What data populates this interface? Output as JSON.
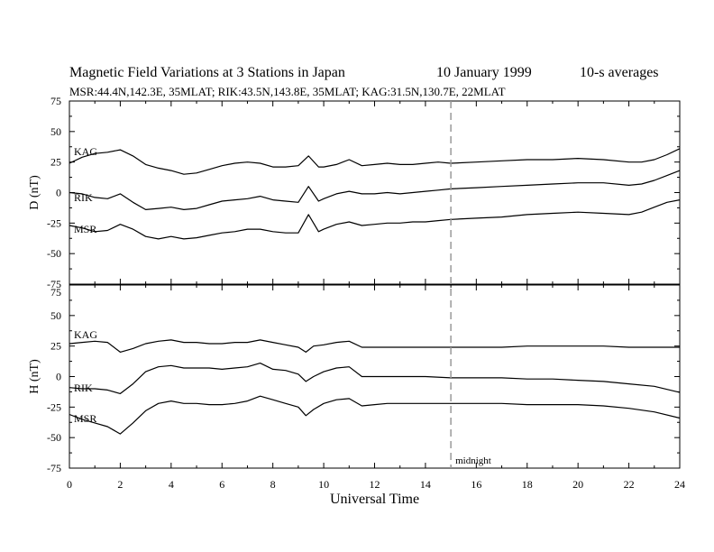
{
  "header": {
    "title": "Magnetic Field Variations at 3 Stations in Japan",
    "date": "10 January 1999",
    "averaging": "10-s averages",
    "stations": "MSR:44.4N,142.3E, 35MLAT;  RIK:43.5N,143.8E, 35MLAT;  KAG:31.5N,130.7E, 22MLAT"
  },
  "colors": {
    "trace": "#000000",
    "marker": "#999999"
  },
  "chart_data": {
    "type": "line",
    "xlabel": "Universal Time",
    "xlim": [
      0,
      24
    ],
    "xticks": [
      "0",
      "2",
      "4",
      "6",
      "8",
      "10",
      "12",
      "14",
      "16",
      "18",
      "20",
      "22",
      "24"
    ],
    "marker": {
      "x": 15,
      "label": "midnight"
    },
    "panels": [
      {
        "ylabel": "D (nT)",
        "ylim": [
          -75,
          75
        ],
        "yticks": [
          "75",
          "50",
          "25",
          "0",
          "-25",
          "-50",
          "-75"
        ],
        "series": [
          {
            "name": "KAG",
            "x": [
              0,
              0.5,
              1,
              1.5,
              2,
              2.5,
              3,
              3.5,
              4,
              4.5,
              5,
              5.5,
              6,
              6.5,
              7,
              7.5,
              8,
              8.5,
              9,
              9.4,
              9.8,
              10,
              10.5,
              11,
              11.5,
              12,
              12.5,
              13,
              13.5,
              14,
              14.5,
              15,
              16,
              17,
              18,
              19,
              20,
              21,
              22,
              22.5,
              23,
              23.5,
              24
            ],
            "y": [
              24,
              29,
              32,
              33,
              35,
              30,
              23,
              20,
              18,
              15,
              16,
              19,
              22,
              24,
              25,
              24,
              21,
              21,
              22,
              30,
              21,
              21,
              23,
              27,
              22,
              23,
              24,
              23,
              23,
              24,
              25,
              24,
              25,
              26,
              27,
              27,
              28,
              27,
              25,
              25,
              27,
              31,
              36
            ]
          },
          {
            "name": "RIK",
            "x": [
              0,
              0.5,
              1,
              1.5,
              2,
              2.5,
              3,
              3.5,
              4,
              4.5,
              5,
              5.5,
              6,
              6.5,
              7,
              7.5,
              8,
              8.5,
              9,
              9.4,
              9.8,
              10,
              10.5,
              11,
              11.5,
              12,
              12.5,
              13,
              13.5,
              14,
              14.5,
              15,
              16,
              17,
              18,
              19,
              20,
              21,
              22,
              22.5,
              23,
              23.5,
              24
            ],
            "y": [
              0,
              -1,
              -4,
              -5,
              -1,
              -8,
              -14,
              -13,
              -12,
              -14,
              -13,
              -10,
              -7,
              -6,
              -5,
              -3,
              -6,
              -7,
              -8,
              5,
              -7,
              -5,
              -1,
              1,
              -1,
              -1,
              0,
              -1,
              0,
              1,
              2,
              3,
              4,
              5,
              6,
              7,
              8,
              8,
              6,
              7,
              10,
              14,
              18
            ]
          },
          {
            "name": "MSR",
            "x": [
              0,
              0.5,
              1,
              1.5,
              2,
              2.5,
              3,
              3.5,
              4,
              4.5,
              5,
              5.5,
              6,
              6.5,
              7,
              7.5,
              8,
              8.5,
              9,
              9.4,
              9.8,
              10,
              10.5,
              11,
              11.5,
              12,
              12.5,
              13,
              13.5,
              14,
              14.5,
              15,
              16,
              17,
              18,
              19,
              20,
              21,
              22,
              22.5,
              23,
              23.5,
              24
            ],
            "y": [
              -27,
              -29,
              -32,
              -31,
              -26,
              -30,
              -36,
              -38,
              -36,
              -38,
              -37,
              -35,
              -33,
              -32,
              -30,
              -30,
              -32,
              -33,
              -33,
              -18,
              -32,
              -30,
              -26,
              -24,
              -27,
              -26,
              -25,
              -25,
              -24,
              -24,
              -23,
              -22,
              -21,
              -20,
              -18,
              -17,
              -16,
              -17,
              -18,
              -16,
              -12,
              -8,
              -6
            ]
          }
        ]
      },
      {
        "ylabel": "H (nT)",
        "ylim": [
          -75,
          75
        ],
        "yticks": [
          "75",
          "50",
          "25",
          "0",
          "-25",
          "-50",
          "-75"
        ],
        "series": [
          {
            "name": "KAG",
            "x": [
              0,
              0.5,
              1,
              1.5,
              2,
              2.5,
              3,
              3.5,
              4,
              4.5,
              5,
              5.5,
              6,
              6.5,
              7,
              7.5,
              8,
              8.5,
              9,
              9.3,
              9.6,
              10,
              10.5,
              11,
              11.5,
              12,
              12.5,
              13,
              14,
              15,
              16,
              17,
              18,
              19,
              20,
              21,
              22,
              23,
              24
            ],
            "y": [
              27,
              28,
              29,
              28,
              20,
              23,
              27,
              29,
              30,
              28,
              28,
              27,
              27,
              28,
              28,
              30,
              28,
              26,
              24,
              20,
              25,
              26,
              28,
              29,
              24,
              24,
              24,
              24,
              24,
              24,
              24,
              24,
              25,
              25,
              25,
              25,
              24,
              24,
              24
            ]
          },
          {
            "name": "RIK",
            "x": [
              0,
              0.5,
              1,
              1.5,
              2,
              2.5,
              3,
              3.5,
              4,
              4.5,
              5,
              5.5,
              6,
              6.5,
              7,
              7.5,
              8,
              8.5,
              9,
              9.3,
              9.6,
              10,
              10.5,
              11,
              11.5,
              12,
              12.5,
              13,
              14,
              15,
              16,
              17,
              18,
              19,
              20,
              21,
              22,
              23,
              24
            ],
            "y": [
              -9,
              -10,
              -10,
              -11,
              -14,
              -6,
              4,
              8,
              9,
              7,
              7,
              7,
              6,
              7,
              8,
              11,
              6,
              5,
              2,
              -4,
              0,
              4,
              7,
              8,
              0,
              0,
              0,
              0,
              0,
              -1,
              -1,
              -1,
              -2,
              -2,
              -3,
              -4,
              -6,
              -8,
              -13
            ]
          },
          {
            "name": "MSR",
            "x": [
              0,
              0.5,
              1,
              1.5,
              2,
              2.5,
              3,
              3.5,
              4,
              4.5,
              5,
              5.5,
              6,
              6.5,
              7,
              7.5,
              8,
              8.5,
              9,
              9.3,
              9.6,
              10,
              10.5,
              11,
              11.5,
              12,
              12.5,
              13,
              14,
              15,
              16,
              17,
              18,
              19,
              20,
              21,
              22,
              23,
              24
            ],
            "y": [
              -31,
              -35,
              -38,
              -41,
              -47,
              -38,
              -28,
              -22,
              -20,
              -22,
              -22,
              -23,
              -23,
              -22,
              -20,
              -16,
              -19,
              -22,
              -25,
              -32,
              -27,
              -22,
              -19,
              -18,
              -24,
              -23,
              -22,
              -22,
              -22,
              -22,
              -22,
              -22,
              -23,
              -23,
              -23,
              -24,
              -26,
              -29,
              -34
            ]
          }
        ]
      }
    ]
  }
}
